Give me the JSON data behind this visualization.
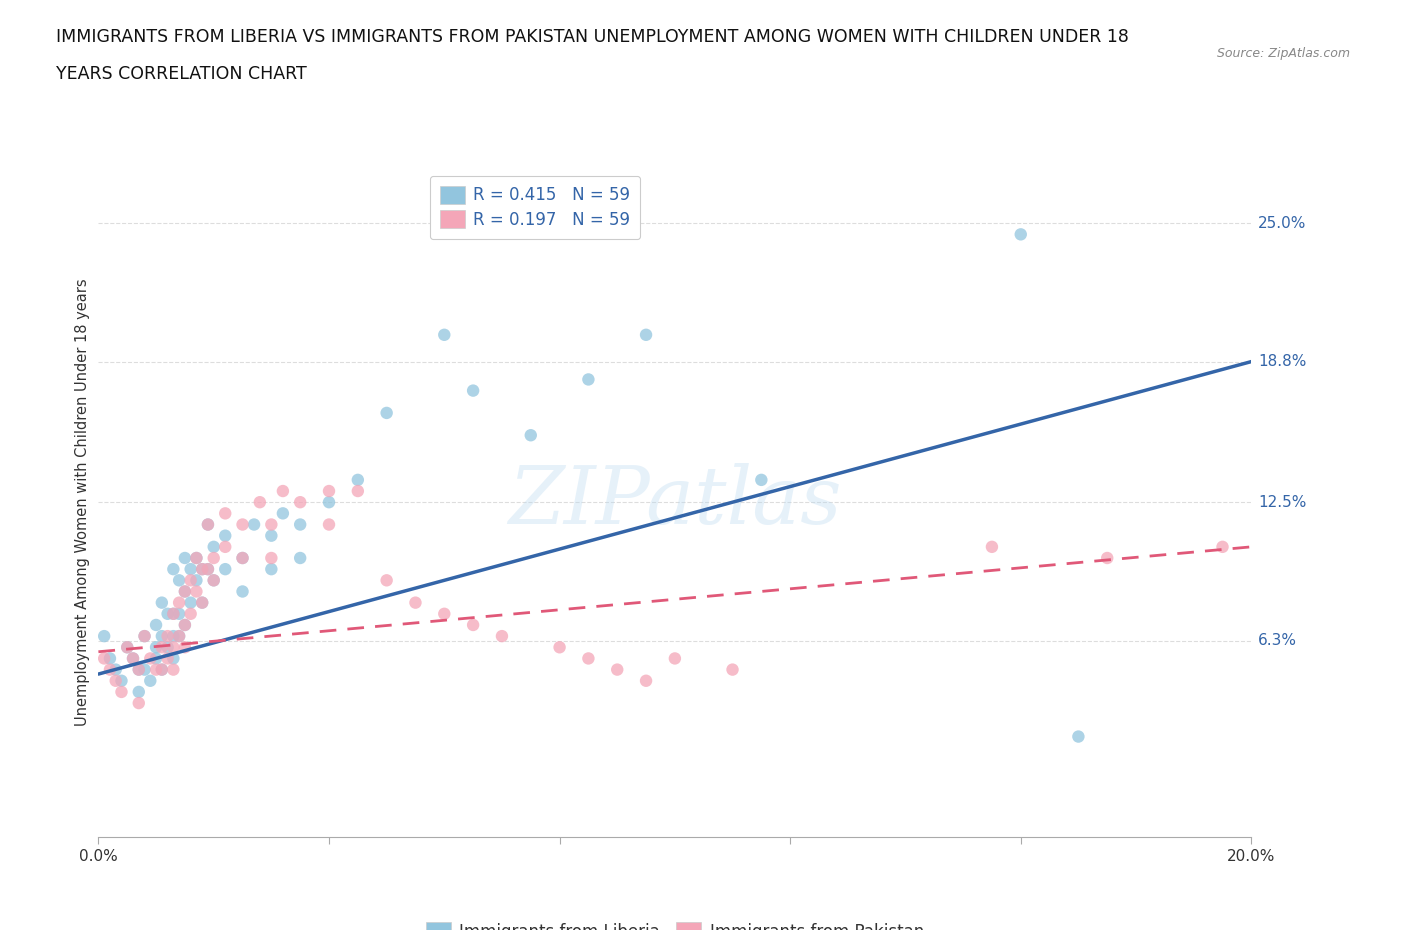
{
  "title_line1": "IMMIGRANTS FROM LIBERIA VS IMMIGRANTS FROM PAKISTAN UNEMPLOYMENT AMONG WOMEN WITH CHILDREN UNDER 18",
  "title_line2": "YEARS CORRELATION CHART",
  "source_text": "Source: ZipAtlas.com",
  "ylabel": "Unemployment Among Women with Children Under 18 years",
  "xlim": [
    0.0,
    0.2
  ],
  "ylim": [
    -0.025,
    0.275
  ],
  "xticks": [
    0.0,
    0.04,
    0.08,
    0.12,
    0.16,
    0.2
  ],
  "xticklabels": [
    "0.0%",
    "",
    "",
    "",
    "",
    "20.0%"
  ],
  "ytick_labels": [
    "25.0%",
    "18.8%",
    "12.5%",
    "6.3%"
  ],
  "ytick_vals": [
    0.25,
    0.188,
    0.125,
    0.063
  ],
  "liberia_color": "#92c5de",
  "pakistan_color": "#f4a6b8",
  "liberia_line_color": "#3465a8",
  "pakistan_line_color": "#e05878",
  "legend_r_color": "#3465a8",
  "liberia_scatter": [
    [
      0.001,
      0.065
    ],
    [
      0.002,
      0.055
    ],
    [
      0.003,
      0.05
    ],
    [
      0.004,
      0.045
    ],
    [
      0.005,
      0.06
    ],
    [
      0.006,
      0.055
    ],
    [
      0.007,
      0.05
    ],
    [
      0.007,
      0.04
    ],
    [
      0.008,
      0.065
    ],
    [
      0.008,
      0.05
    ],
    [
      0.009,
      0.045
    ],
    [
      0.01,
      0.07
    ],
    [
      0.01,
      0.06
    ],
    [
      0.01,
      0.055
    ],
    [
      0.011,
      0.08
    ],
    [
      0.011,
      0.065
    ],
    [
      0.011,
      0.05
    ],
    [
      0.012,
      0.075
    ],
    [
      0.012,
      0.06
    ],
    [
      0.013,
      0.095
    ],
    [
      0.013,
      0.075
    ],
    [
      0.013,
      0.065
    ],
    [
      0.013,
      0.055
    ],
    [
      0.014,
      0.09
    ],
    [
      0.014,
      0.075
    ],
    [
      0.014,
      0.065
    ],
    [
      0.015,
      0.1
    ],
    [
      0.015,
      0.085
    ],
    [
      0.015,
      0.07
    ],
    [
      0.016,
      0.095
    ],
    [
      0.016,
      0.08
    ],
    [
      0.017,
      0.1
    ],
    [
      0.017,
      0.09
    ],
    [
      0.018,
      0.095
    ],
    [
      0.018,
      0.08
    ],
    [
      0.019,
      0.115
    ],
    [
      0.019,
      0.095
    ],
    [
      0.02,
      0.105
    ],
    [
      0.02,
      0.09
    ],
    [
      0.022,
      0.11
    ],
    [
      0.022,
      0.095
    ],
    [
      0.025,
      0.1
    ],
    [
      0.025,
      0.085
    ],
    [
      0.027,
      0.115
    ],
    [
      0.03,
      0.11
    ],
    [
      0.03,
      0.095
    ],
    [
      0.032,
      0.12
    ],
    [
      0.035,
      0.115
    ],
    [
      0.035,
      0.1
    ],
    [
      0.04,
      0.125
    ],
    [
      0.045,
      0.135
    ],
    [
      0.05,
      0.165
    ],
    [
      0.06,
      0.2
    ],
    [
      0.065,
      0.175
    ],
    [
      0.075,
      0.155
    ],
    [
      0.085,
      0.18
    ],
    [
      0.095,
      0.2
    ],
    [
      0.115,
      0.135
    ],
    [
      0.17,
      0.02
    ],
    [
      0.16,
      0.245
    ]
  ],
  "pakistan_scatter": [
    [
      0.001,
      0.055
    ],
    [
      0.002,
      0.05
    ],
    [
      0.003,
      0.045
    ],
    [
      0.004,
      0.04
    ],
    [
      0.005,
      0.06
    ],
    [
      0.006,
      0.055
    ],
    [
      0.007,
      0.05
    ],
    [
      0.007,
      0.035
    ],
    [
      0.008,
      0.065
    ],
    [
      0.009,
      0.055
    ],
    [
      0.01,
      0.05
    ],
    [
      0.011,
      0.06
    ],
    [
      0.011,
      0.05
    ],
    [
      0.012,
      0.065
    ],
    [
      0.012,
      0.055
    ],
    [
      0.013,
      0.075
    ],
    [
      0.013,
      0.06
    ],
    [
      0.013,
      0.05
    ],
    [
      0.014,
      0.08
    ],
    [
      0.014,
      0.065
    ],
    [
      0.015,
      0.085
    ],
    [
      0.015,
      0.07
    ],
    [
      0.015,
      0.06
    ],
    [
      0.016,
      0.09
    ],
    [
      0.016,
      0.075
    ],
    [
      0.017,
      0.1
    ],
    [
      0.017,
      0.085
    ],
    [
      0.018,
      0.095
    ],
    [
      0.018,
      0.08
    ],
    [
      0.019,
      0.115
    ],
    [
      0.019,
      0.095
    ],
    [
      0.02,
      0.1
    ],
    [
      0.02,
      0.09
    ],
    [
      0.022,
      0.12
    ],
    [
      0.022,
      0.105
    ],
    [
      0.025,
      0.115
    ],
    [
      0.025,
      0.1
    ],
    [
      0.028,
      0.125
    ],
    [
      0.03,
      0.115
    ],
    [
      0.03,
      0.1
    ],
    [
      0.032,
      0.13
    ],
    [
      0.035,
      0.125
    ],
    [
      0.04,
      0.13
    ],
    [
      0.04,
      0.115
    ],
    [
      0.045,
      0.13
    ],
    [
      0.05,
      0.09
    ],
    [
      0.055,
      0.08
    ],
    [
      0.06,
      0.075
    ],
    [
      0.065,
      0.07
    ],
    [
      0.07,
      0.065
    ],
    [
      0.08,
      0.06
    ],
    [
      0.085,
      0.055
    ],
    [
      0.09,
      0.05
    ],
    [
      0.095,
      0.045
    ],
    [
      0.1,
      0.055
    ],
    [
      0.11,
      0.05
    ],
    [
      0.155,
      0.105
    ],
    [
      0.175,
      0.1
    ],
    [
      0.195,
      0.105
    ]
  ],
  "liberia_trendline": [
    [
      0.0,
      0.048
    ],
    [
      0.2,
      0.188
    ]
  ],
  "pakistan_trendline": [
    [
      0.0,
      0.058
    ],
    [
      0.2,
      0.105
    ]
  ],
  "background_color": "#ffffff",
  "grid_color": "#dddddd",
  "title_fontsize": 12.5,
  "axis_label_fontsize": 10.5,
  "tick_fontsize": 11,
  "legend_fontsize": 12,
  "watermark_text": "ZIPatlas",
  "legend_bottom": [
    "Immigrants from Liberia",
    "Immigrants from Pakistan"
  ]
}
